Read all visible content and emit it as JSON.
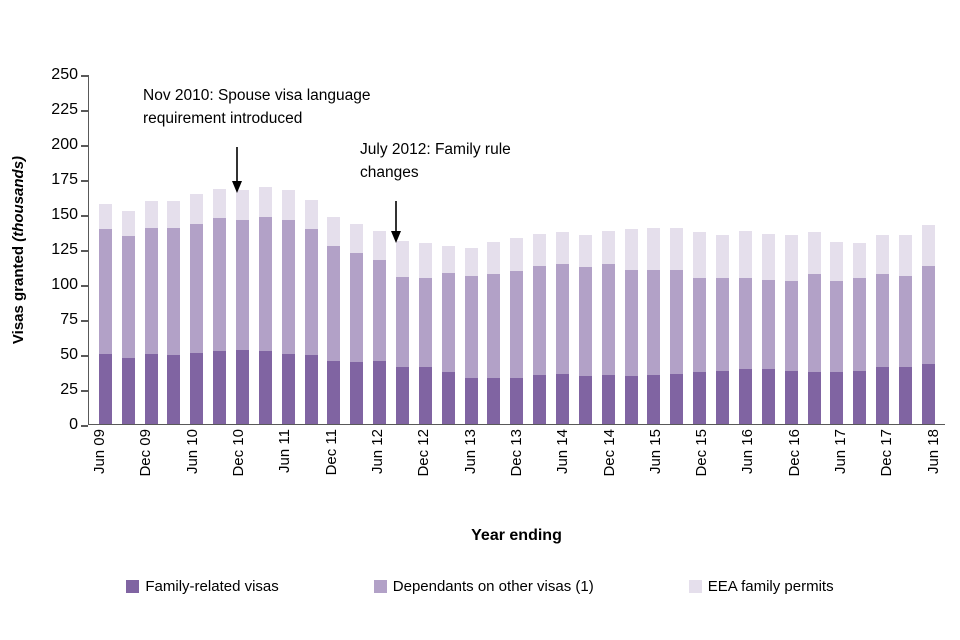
{
  "y_axis": {
    "label_main": "Visas granted ",
    "label_italic": "(thousands)",
    "ticks": [
      0,
      25,
      50,
      75,
      100,
      125,
      150,
      175,
      200,
      225,
      250
    ]
  },
  "x_axis": {
    "label": "Year ending"
  },
  "annotations": [
    {
      "line1": "Nov 2010: Spouse visa language",
      "line2": "requirement  introduced"
    },
    {
      "line1": "July 2012: Family rule",
      "line2": "changes"
    }
  ],
  "legend": [
    {
      "label": "Family-related visas"
    },
    {
      "label": "Dependants on other visas (1)"
    },
    {
      "label": "EEA family permits"
    }
  ],
  "chart_data": {
    "type": "bar",
    "stacked": true,
    "title": "",
    "xlabel": "Year ending",
    "ylabel": "Visas granted (thousands)",
    "ylim": [
      0,
      250
    ],
    "y_tick_step": 25,
    "grid": false,
    "legend_position": "bottom",
    "x_label_shown_every": 2,
    "categories": [
      "Jun 09",
      "Sep 09",
      "Dec 09",
      "Mar 10",
      "Jun 10",
      "Sep 10",
      "Dec 10",
      "Mar 11",
      "Jun 11",
      "Sep 11",
      "Dec 11",
      "Mar 12",
      "Jun 12",
      "Sep 12",
      "Dec 12",
      "Mar 13",
      "Jun 13",
      "Sep 13",
      "Dec 13",
      "Mar 14",
      "Jun 14",
      "Sep 14",
      "Dec 14",
      "Mar 15",
      "Jun 15",
      "Sep 15",
      "Dec 15",
      "Mar 16",
      "Jun 16",
      "Sep 16",
      "Dec 16",
      "Mar 17",
      "Jun 17",
      "Sep 17",
      "Dec 17",
      "Mar 18",
      "Jun 18"
    ],
    "series": [
      {
        "name": "Family-related visas",
        "color": "#8064a2",
        "values": [
          50,
          47,
          50,
          49,
          51,
          52,
          53,
          52,
          50,
          49,
          45,
          44,
          45,
          41,
          41,
          37,
          33,
          33,
          33,
          35,
          36,
          34,
          35,
          34,
          35,
          36,
          37,
          38,
          39,
          39,
          38,
          37,
          37,
          38,
          41,
          41,
          43
        ]
      },
      {
        "name": "Dependants on other visas (1)",
        "color": "#b2a1c7",
        "values": [
          89,
          87,
          90,
          91,
          92,
          95,
          93,
          96,
          96,
          90,
          82,
          78,
          72,
          64,
          63,
          71,
          73,
          74,
          76,
          78,
          78,
          78,
          79,
          76,
          75,
          74,
          67,
          66,
          65,
          64,
          64,
          70,
          65,
          66,
          66,
          65,
          70
        ]
      },
      {
        "name": "EEA family permits",
        "color": "#e5dfec",
        "values": [
          18,
          18,
          19,
          19,
          21,
          21,
          21,
          21,
          21,
          21,
          21,
          21,
          21,
          26,
          25,
          19,
          20,
          23,
          24,
          23,
          23,
          23,
          24,
          29,
          30,
          30,
          33,
          31,
          34,
          33,
          33,
          30,
          28,
          25,
          28,
          29,
          29
        ]
      }
    ],
    "annotations": [
      {
        "text": "Nov 2010: Spouse visa language requirement introduced",
        "points_to": "Sep/Dec 10"
      },
      {
        "text": "July 2012: Family rule changes",
        "points_to": "Sep 12"
      }
    ]
  }
}
